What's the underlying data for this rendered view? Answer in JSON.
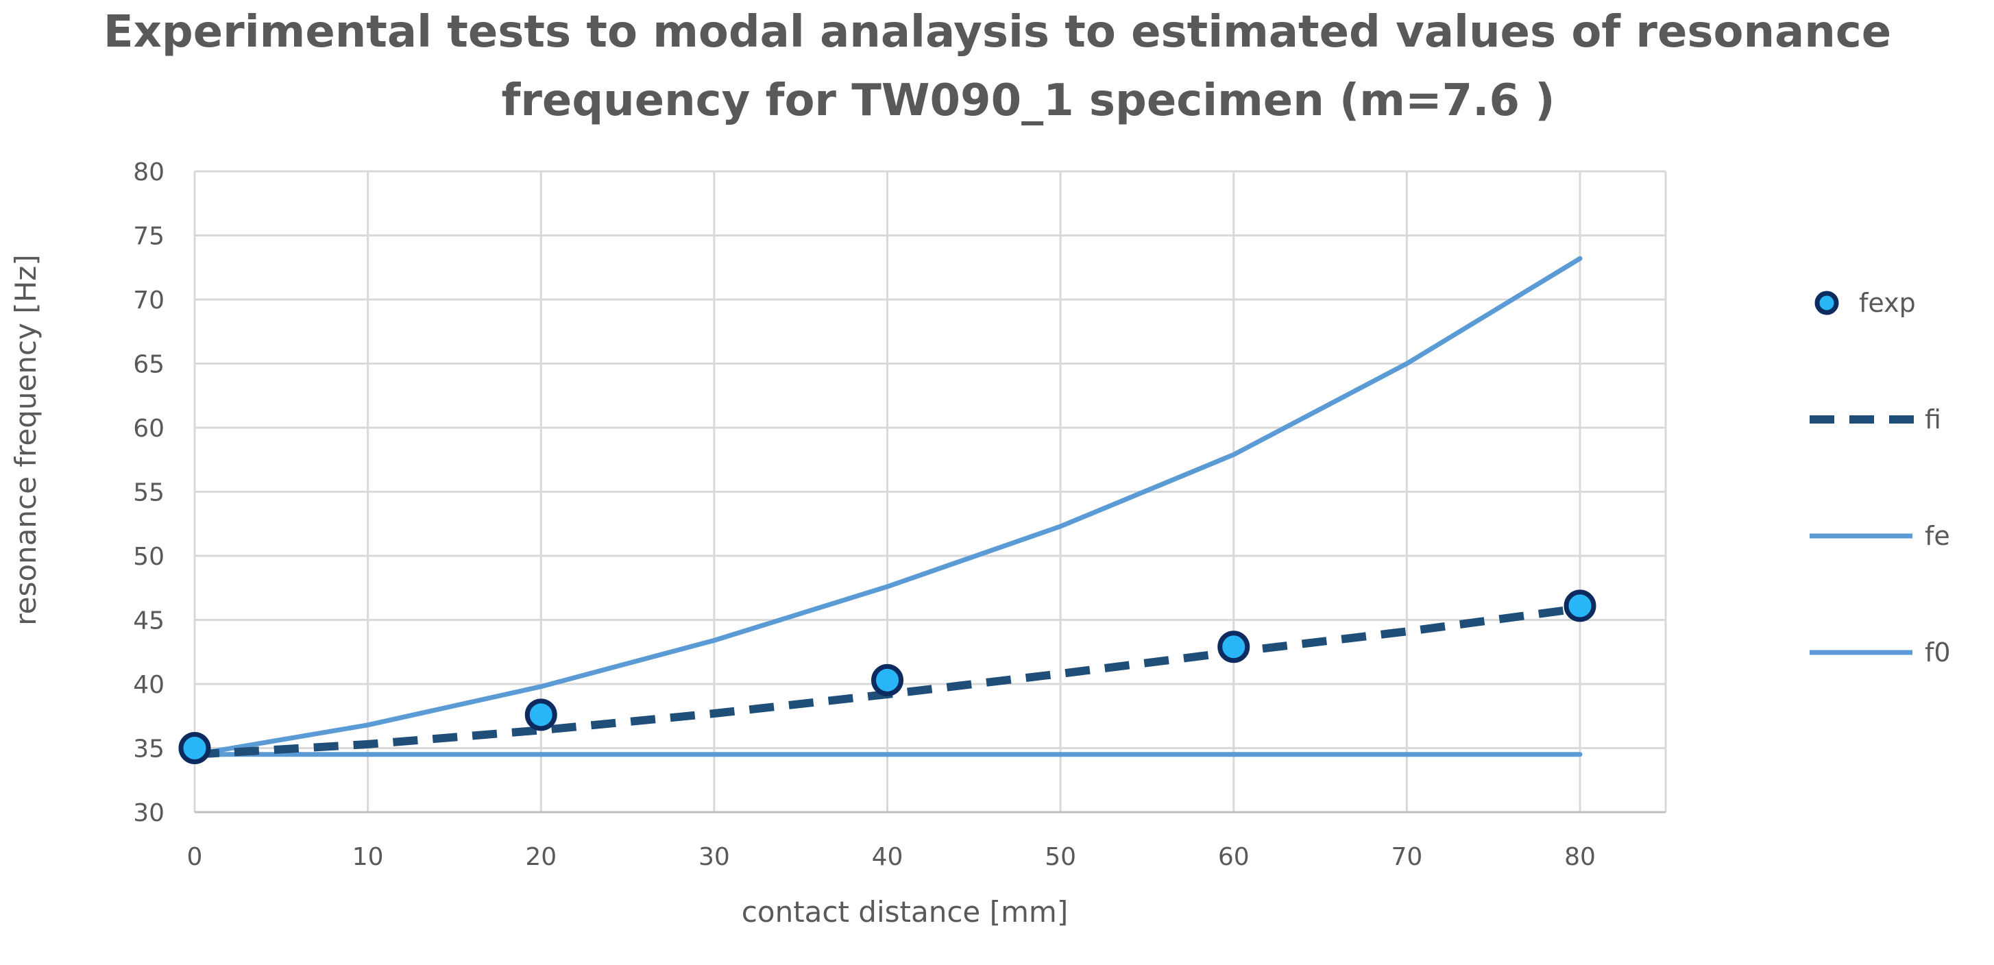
{
  "chart_data": {
    "type": "line",
    "title": "Experimental tests to modal analaysis to estimated values of resonance frequency for TW090_1 specimen (m=7.6 )",
    "title_lines": [
      "Experimental tests to modal analaysis to estimated values of resonance",
      "frequency for TW090_1 specimen (m=7.6 )"
    ],
    "xlabel": "contact distance [mm]",
    "ylabel": "resonance frequency [Hz]",
    "xlim": [
      0,
      85
    ],
    "ylim": [
      30,
      80
    ],
    "x_ticks": [
      0,
      10,
      20,
      30,
      40,
      50,
      60,
      70,
      80
    ],
    "y_ticks": [
      30,
      35,
      40,
      45,
      50,
      55,
      60,
      65,
      70,
      75,
      80
    ],
    "grid": true,
    "legend_position": "right",
    "series": [
      {
        "name": "fexp",
        "style": "markers",
        "color": "#29B6F6",
        "edge_color": "#0D2B5E",
        "x": [
          0,
          20,
          40,
          60,
          80
        ],
        "y": [
          35.0,
          37.6,
          40.3,
          42.9,
          46.1
        ]
      },
      {
        "name": "fi",
        "style": "dashed",
        "color": "#1F4E79",
        "x": [
          0,
          10,
          20,
          30,
          40,
          50,
          60,
          70,
          80
        ],
        "y": [
          34.5,
          35.3,
          36.4,
          37.7,
          39.2,
          40.8,
          42.5,
          44.1,
          45.9
        ]
      },
      {
        "name": "fe",
        "style": "solid",
        "color": "#5B9BD5",
        "x": [
          0,
          10,
          20,
          30,
          40,
          50,
          60,
          70,
          80
        ],
        "y": [
          34.5,
          36.8,
          39.8,
          43.4,
          47.6,
          52.3,
          57.9,
          65.0,
          73.2
        ]
      },
      {
        "name": "f0",
        "style": "solid",
        "color": "#5B9BD5",
        "x": [
          0,
          80
        ],
        "y": [
          34.5,
          34.5
        ]
      }
    ]
  }
}
